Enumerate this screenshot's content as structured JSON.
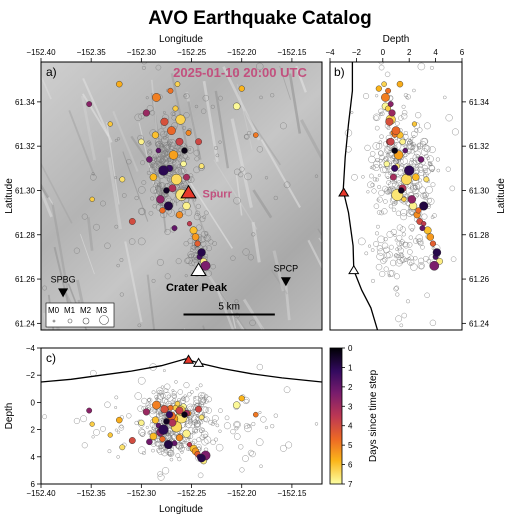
{
  "figure": {
    "title": "AVO Earthquake Catalog",
    "timestamp": "2025-01-10 20:00 UTC",
    "colors": {
      "title_time": "#c2507e",
      "spurr_label": "#c2507e",
      "spurr_marker": "#e8382b",
      "hillshade_light": "#d4d4d4",
      "hillshade_dark": "#9a9a9a"
    }
  },
  "chart_data": [
    {
      "panel": "a)",
      "type": "scatter",
      "xlabel_top": "Longitude",
      "ylabel": "Latitude",
      "xlim": [
        -152.4,
        -152.12
      ],
      "ylim": [
        61.237,
        61.358
      ],
      "xticks": [
        "−152.40",
        "−152.35",
        "−152.30",
        "−152.25",
        "−152.20",
        "−152.15"
      ],
      "yticks": [
        "61.24",
        "61.26",
        "61.28",
        "61.30",
        "61.32",
        "61.34"
      ],
      "volcanoes": [
        {
          "name": "Spurr",
          "lon": -152.253,
          "lat": 61.299,
          "icon": "red-triangle"
        },
        {
          "name": "Crater Peak",
          "lon": -152.243,
          "lat": 61.264,
          "icon": "white-triangle"
        }
      ],
      "stations": [
        {
          "name": "SPBG",
          "lon": -152.378,
          "lat": 61.254
        },
        {
          "name": "SPCP",
          "lon": -152.156,
          "lat": 61.259
        }
      ],
      "scale_bar": {
        "label": "5 km",
        "lon_start": -152.258,
        "lon_end": -152.167,
        "lat": 61.244
      },
      "magnitude_legend": [
        "M0",
        "M1",
        "M2",
        "M3"
      ],
      "grid": false
    },
    {
      "panel": "b)",
      "type": "scatter",
      "xlabel_top": "Depth",
      "ylabel_right": "Latitude",
      "xlim": [
        -4,
        6
      ],
      "ylim": [
        61.237,
        61.358
      ],
      "xticks": [
        "−4",
        "−2",
        "0",
        "2",
        "4",
        "6"
      ],
      "yticks": [
        "61.24",
        "61.26",
        "61.28",
        "61.30",
        "61.32",
        "61.34"
      ],
      "topography_profile": [
        [
          -2.3,
          61.358
        ],
        [
          -2.3,
          61.345
        ],
        [
          -2.6,
          61.33
        ],
        [
          -2.85,
          61.315
        ],
        [
          -3.0,
          61.3
        ],
        [
          -2.6,
          61.29
        ],
        [
          -2.25,
          61.275
        ],
        [
          -2.2,
          61.264
        ],
        [
          -1.6,
          61.255
        ],
        [
          -0.9,
          61.247
        ],
        [
          -0.4,
          61.237
        ]
      ]
    },
    {
      "panel": "c)",
      "type": "scatter",
      "xlabel": "Longitude",
      "ylabel": "Depth",
      "xlim": [
        -152.4,
        -152.12
      ],
      "ylim": [
        -4,
        6
      ],
      "xticks": [
        "−152.40",
        "−152.35",
        "−152.30",
        "−152.25",
        "−152.20",
        "−152.15"
      ],
      "yticks": [
        "−4",
        "−2",
        "0",
        "2",
        "4",
        "6"
      ],
      "topography_profile": [
        [
          -152.4,
          -1.5
        ],
        [
          -152.37,
          -1.7
        ],
        [
          -152.34,
          -2.0
        ],
        [
          -152.31,
          -2.3
        ],
        [
          -152.28,
          -2.7
        ],
        [
          -152.256,
          -3.2
        ],
        [
          -152.243,
          -2.9
        ],
        [
          -152.22,
          -2.5
        ],
        [
          -152.19,
          -2.1
        ],
        [
          -152.16,
          -1.8
        ],
        [
          -152.12,
          -1.5
        ]
      ]
    },
    {
      "type": "colorbar",
      "label": "Days since time step",
      "range": [
        0,
        7
      ],
      "ticks": [
        "0",
        "1",
        "2",
        "3",
        "4",
        "5",
        "6",
        "7"
      ],
      "colormap": [
        "#000004",
        "#330a5f",
        "#781c6d",
        "#bc3754",
        "#ed6925",
        "#fbb61a",
        "#fcffa4"
      ]
    },
    {
      "type": "earthquakes",
      "columns": [
        "lon",
        "lat",
        "depth_km",
        "magnitude",
        "days_since"
      ],
      "located_recent": [
        [
          -152.262,
          61.322,
          0.6,
          1.6,
          3.8
        ],
        [
          -152.268,
          61.316,
          1.2,
          2.1,
          5.5
        ],
        [
          -152.272,
          61.31,
          0.9,
          1.4,
          1.2
        ],
        [
          -152.265,
          61.305,
          1.8,
          2.6,
          6.4
        ],
        [
          -152.275,
          61.3,
          1.4,
          1.2,
          0.4
        ],
        [
          -152.281,
          61.296,
          2.2,
          1.8,
          2.7
        ],
        [
          -152.258,
          61.312,
          0.3,
          1.1,
          6.9
        ],
        [
          -152.27,
          61.327,
          1.0,
          1.9,
          4.6
        ],
        [
          -152.283,
          61.318,
          1.7,
          0.9,
          1.9
        ],
        [
          -152.288,
          61.306,
          2.5,
          1.5,
          5.9
        ],
        [
          -152.26,
          61.298,
          1.1,
          2.9,
          6.6
        ],
        [
          -152.255,
          61.306,
          0.8,
          1.3,
          3.1
        ],
        [
          -152.277,
          61.331,
          0.5,
          1.7,
          4.1
        ],
        [
          -152.266,
          61.337,
          0.4,
          1.0,
          6.2
        ],
        [
          -152.292,
          61.314,
          2.9,
          1.2,
          2.2
        ],
        [
          -152.273,
          61.293,
          3.1,
          2.0,
          0.8
        ],
        [
          -152.262,
          61.289,
          2.6,
          1.4,
          5.2
        ],
        [
          -152.248,
          61.282,
          3.4,
          1.6,
          6.0
        ],
        [
          -152.244,
          61.276,
          3.8,
          1.1,
          4.4
        ],
        [
          -152.24,
          61.272,
          4.1,
          1.8,
          0.9
        ],
        [
          -152.238,
          61.268,
          4.3,
          1.3,
          6.7
        ],
        [
          -152.236,
          61.266,
          3.9,
          2.2,
          2.4
        ],
        [
          -152.242,
          61.27,
          4.0,
          1.0,
          1.5
        ],
        [
          -152.246,
          61.279,
          3.6,
          1.5,
          5.4
        ],
        [
          -152.252,
          61.285,
          3.1,
          0.8,
          3.6
        ],
        [
          -152.3,
          61.322,
          1.5,
          1.1,
          6.8
        ],
        [
          -152.295,
          61.335,
          0.7,
          1.4,
          2.9
        ],
        [
          -152.285,
          61.342,
          0.2,
          1.9,
          5.0
        ],
        [
          -152.271,
          61.345,
          0.4,
          1.0,
          4.8
        ],
        [
          -152.264,
          61.348,
          0.1,
          0.9,
          6.3
        ],
        [
          -152.322,
          61.348,
          1.3,
          1.2,
          5.7
        ],
        [
          -152.331,
          61.33,
          2.4,
          0.8,
          6.1
        ],
        [
          -152.309,
          61.286,
          2.8,
          1.3,
          4.0
        ],
        [
          -152.319,
          61.305,
          3.3,
          1.0,
          6.5
        ],
        [
          -152.2,
          61.346,
          -0.3,
          1.1,
          5.8
        ],
        [
          -152.205,
          61.338,
          0.2,
          1.5,
          6.9
        ],
        [
          -152.186,
          61.325,
          0.9,
          0.9,
          4.9
        ],
        [
          -152.349,
          61.296,
          1.6,
          0.8,
          6.2
        ],
        [
          -152.352,
          61.339,
          0.6,
          1.0,
          2.6
        ],
        [
          -152.278,
          61.309,
          2.0,
          2.4,
          1.0
        ],
        [
          -152.269,
          61.301,
          1.5,
          1.6,
          3.3
        ],
        [
          -152.257,
          61.318,
          0.9,
          1.2,
          0.2
        ],
        [
          -152.286,
          61.325,
          1.3,
          1.4,
          6.0
        ],
        [
          -152.279,
          61.291,
          2.7,
          1.1,
          4.7
        ],
        [
          -152.255,
          61.293,
          2.3,
          1.7,
          6.8
        ],
        [
          -152.267,
          61.283,
          3.0,
          1.0,
          2.0
        ],
        [
          -152.261,
          61.332,
          0.6,
          2.3,
          6.3
        ],
        [
          -152.253,
          61.326,
          0.8,
          1.0,
          5.1
        ],
        [
          -152.24,
          61.311,
          1.1,
          0.9,
          6.6
        ],
        [
          -152.243,
          61.322,
          0.5,
          1.3,
          3.9
        ]
      ]
    }
  ]
}
